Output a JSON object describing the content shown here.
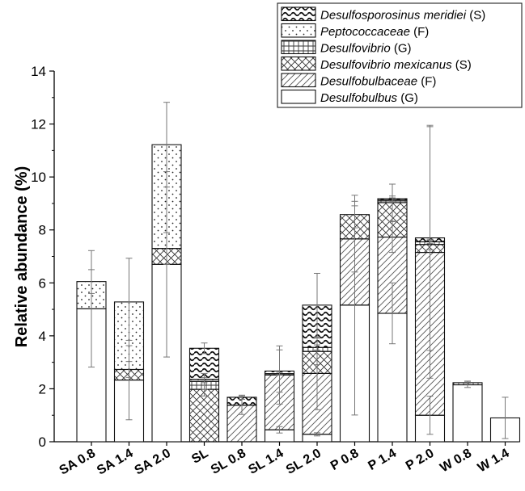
{
  "chart_data": {
    "type": "bar",
    "stacked": true,
    "title": "",
    "xlabel": "",
    "ylabel": "Relative abundance (%)",
    "ylim": [
      0,
      14
    ],
    "yticks": [
      0,
      2,
      4,
      6,
      8,
      10,
      12,
      14
    ],
    "grid": false,
    "legend_position": "top-right",
    "categories": [
      "SA 0.8",
      "SA 1.4",
      "SA 2.0",
      "SL",
      "SL 0.8",
      "SL 1.4",
      "SL 2.0",
      "P 0.8",
      "P 1.4",
      "P 2.0",
      "W 0.8",
      "W 1.4"
    ],
    "series": [
      {
        "pattern": "open",
        "legend_italic": "Desulfobulbus",
        "legend_rank": " (G)",
        "values": [
          5.02,
          2.33,
          6.7,
          0.0,
          0.0,
          0.45,
          0.28,
          5.16,
          4.85,
          1.0,
          2.15,
          0.9
        ],
        "errors": [
          2.2,
          1.5,
          3.5,
          0,
          0,
          0.12,
          0.06,
          4.15,
          1.15,
          0.72,
          0.1,
          0.78
        ]
      },
      {
        "pattern": "diag",
        "legend_italic": "Desulfobulbaceae",
        "legend_rank": " (F)",
        "values": [
          0.0,
          0.0,
          0.0,
          0.0,
          1.38,
          2.07,
          2.3,
          2.5,
          2.88,
          6.15,
          0.0,
          0.0
        ],
        "errors": [
          0,
          0,
          0,
          0,
          0.35,
          1.1,
          1.37,
          1.25,
          0.58,
          4.75,
          0,
          0
        ]
      },
      {
        "pattern": "cross",
        "legend_italic": "Desulfovibrio mexicanus",
        "legend_rank": " (S)",
        "values": [
          0.0,
          0.4,
          0.6,
          1.98,
          0.0,
          0.0,
          0.83,
          0.92,
          1.3,
          0.3,
          0.0,
          0.0
        ],
        "errors": [
          0,
          0.3,
          0.6,
          0.25,
          0,
          0,
          0.5,
          0.5,
          0.7,
          0.2,
          0,
          0
        ]
      },
      {
        "pattern": "grid",
        "legend_italic": "Desulfovibrio",
        "legend_rank": " (G)",
        "values": [
          0.0,
          0.0,
          0.0,
          0.3,
          0.0,
          0.05,
          0.15,
          0.0,
          0.1,
          0.1,
          0.08,
          0.0
        ],
        "errors": [
          0,
          0,
          0,
          0.3,
          0,
          0.05,
          0.1,
          0,
          0.08,
          0.06,
          0.06,
          0
        ]
      },
      {
        "pattern": "dots",
        "legend_italic": "Peptococcaceae",
        "legend_rank": " (F)",
        "values": [
          1.03,
          2.55,
          3.92,
          0.08,
          0.0,
          0.0,
          0.0,
          0.0,
          0.0,
          0.0,
          0.0,
          0.0
        ],
        "errors": [
          0.45,
          1.65,
          1.6,
          0.06,
          0,
          0,
          0,
          0,
          0,
          0,
          0,
          0
        ]
      },
      {
        "pattern": "wave",
        "legend_italic": "Desulfosporosinus meridiei",
        "legend_rank": " (S)",
        "values": [
          0.0,
          0.0,
          0.0,
          1.17,
          0.3,
          0.1,
          1.6,
          0.0,
          0.05,
          0.15,
          0.0,
          0.0
        ],
        "errors": [
          0,
          0,
          0,
          0.2,
          0.08,
          0.8,
          1.2,
          0,
          0.1,
          4.25,
          0,
          0
        ]
      }
    ],
    "legend_order": [
      5,
      4,
      3,
      2,
      1,
      0
    ]
  }
}
